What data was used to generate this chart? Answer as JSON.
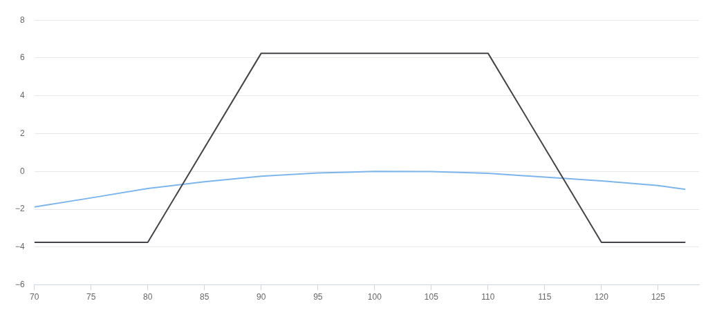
{
  "chart_data": {
    "type": "line",
    "xlim": [
      70,
      128.6
    ],
    "xticks": [
      70,
      75,
      80,
      85,
      90,
      95,
      100,
      105,
      110,
      115,
      120,
      125
    ],
    "ylim": [
      -6,
      8
    ],
    "yticks": [
      -6,
      -4,
      -2,
      0,
      2,
      4,
      6,
      8
    ],
    "grid": "y",
    "marker": "none",
    "series": [
      {
        "color": "#434348",
        "x": [
          70,
          80,
          90,
          110,
          120,
          127.4
        ],
        "values": [
          -3.75,
          -3.75,
          6.25,
          6.25,
          -3.75,
          -3.75
        ]
      },
      {
        "color": "#7cb5ec",
        "x": [
          70,
          75,
          80,
          85,
          90,
          95,
          100,
          105,
          110,
          115,
          120,
          125,
          127.4
        ],
        "values": [
          -1.88,
          -1.4,
          -0.9,
          -0.55,
          -0.25,
          -0.08,
          0,
          -0.01,
          -0.1,
          -0.3,
          -0.5,
          -0.75,
          -0.95
        ]
      }
    ]
  }
}
